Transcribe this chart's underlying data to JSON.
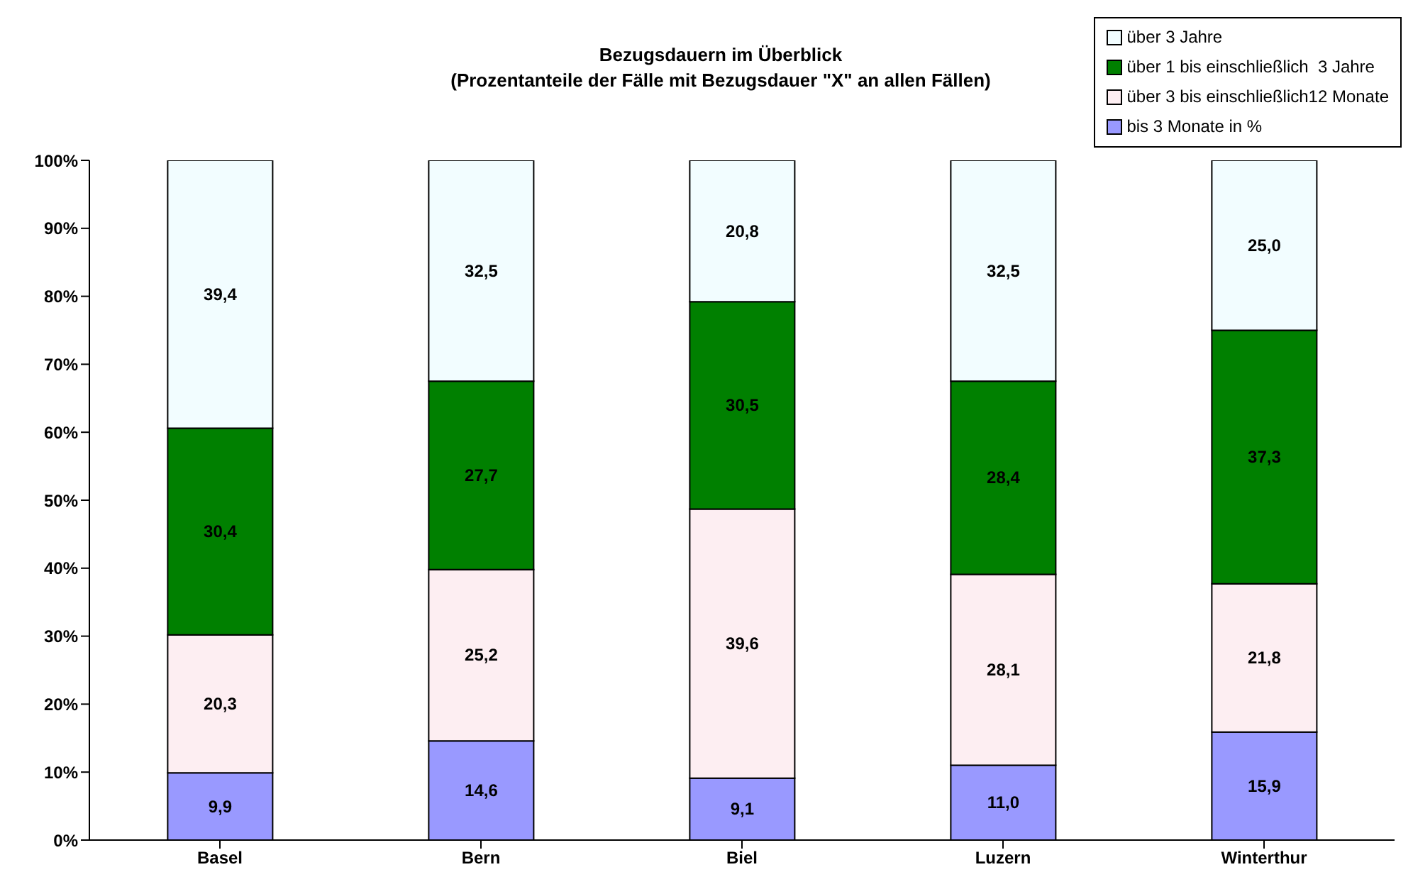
{
  "chart_data": {
    "type": "bar",
    "title": "Bezugsdauern im Überblick",
    "subtitle": "(Prozentanteile der Fälle mit Bezugsdauer \"X\" an allen Fällen)",
    "categories": [
      "Basel",
      "Bern",
      "Biel",
      "Luzern",
      "Winterthur"
    ],
    "stacked": true,
    "legend": "top right",
    "series": [
      {
        "name": "bis 3 Monate in %",
        "color": "#9999ff",
        "values": [
          9.9,
          14.6,
          9.1,
          11.0,
          15.9
        ],
        "value_labels": [
          "9,9",
          "14,6",
          "9,1",
          "11,0",
          "15,9"
        ]
      },
      {
        "name": "über 3 bis einschließlich12 Monate",
        "color": "#fdeef2",
        "values": [
          20.3,
          25.2,
          39.6,
          28.1,
          21.8
        ],
        "value_labels": [
          "20,3",
          "25,2",
          "39,6",
          "28,1",
          "21,8"
        ]
      },
      {
        "name": "über 1 bis einschließlich  3 Jahre",
        "color": "#008000",
        "values": [
          30.4,
          27.7,
          30.5,
          28.4,
          37.3
        ],
        "value_labels": [
          "30,4",
          "27,7",
          "30,5",
          "28,4",
          "37,3"
        ]
      },
      {
        "name": "über 3 Jahre",
        "color": "#f2fdff",
        "values": [
          39.4,
          32.5,
          20.8,
          32.5,
          25.0
        ],
        "value_labels": [
          "39,4",
          "32,5",
          "20,8",
          "32,5",
          "25,0"
        ]
      }
    ],
    "ylim": [
      0,
      100
    ],
    "yticks": [
      {
        "value": 0,
        "label": "0%"
      },
      {
        "value": 10,
        "label": "10%"
      },
      {
        "value": 20,
        "label": "20%"
      },
      {
        "value": 30,
        "label": "30%"
      },
      {
        "value": 40,
        "label": "40%"
      },
      {
        "value": 50,
        "label": "50%"
      },
      {
        "value": 60,
        "label": "60%"
      },
      {
        "value": 70,
        "label": "70%"
      },
      {
        "value": 80,
        "label": "80%"
      },
      {
        "value": 90,
        "label": "90%"
      },
      {
        "value": 100,
        "label": "100%"
      }
    ]
  }
}
